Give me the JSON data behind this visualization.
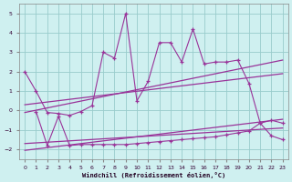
{
  "xlabel": "Windchill (Refroidissement éolien,°C)",
  "xlim": [
    -0.5,
    23.5
  ],
  "ylim": [
    -2.5,
    5.5
  ],
  "yticks": [
    -2,
    -1,
    0,
    1,
    2,
    3,
    4,
    5
  ],
  "xticks": [
    0,
    1,
    2,
    3,
    4,
    5,
    6,
    7,
    8,
    9,
    10,
    11,
    12,
    13,
    14,
    15,
    16,
    17,
    18,
    19,
    20,
    21,
    22,
    23
  ],
  "bg_color": "#cff0f0",
  "line_color": "#993399",
  "grid_color": "#99cccc",
  "line1_x": [
    0,
    1,
    2,
    3,
    4,
    5,
    6,
    7,
    8,
    9,
    10,
    11,
    12,
    13,
    14,
    15,
    16,
    17,
    18,
    19,
    20,
    21,
    22,
    23
  ],
  "line1_y": [
    2.0,
    1.0,
    -0.1,
    -0.15,
    -0.25,
    -0.05,
    0.25,
    3.0,
    2.7,
    5.0,
    0.5,
    1.5,
    3.5,
    3.5,
    2.5,
    4.2,
    2.4,
    2.5,
    2.5,
    2.6,
    1.4,
    -0.65,
    -0.5,
    -0.65
  ],
  "line2_x": [
    1,
    2,
    3,
    4,
    5,
    6,
    7,
    8,
    9,
    10,
    11,
    12,
    13,
    14,
    15,
    16,
    17,
    18,
    19,
    20,
    21,
    22,
    23
  ],
  "line2_y": [
    -0.05,
    -1.8,
    -0.3,
    -1.8,
    -1.75,
    -1.75,
    -1.75,
    -1.75,
    -1.75,
    -1.7,
    -1.65,
    -1.6,
    -1.55,
    -1.5,
    -1.45,
    -1.4,
    -1.35,
    -1.25,
    -1.15,
    -1.05,
    -0.65,
    -1.3,
    -1.5
  ],
  "line3_x": [
    0,
    23
  ],
  "line3_y": [
    -0.1,
    2.6
  ],
  "line4_x": [
    0,
    23
  ],
  "line4_y": [
    -2.05,
    -0.45
  ],
  "line5_x": [
    0,
    23
  ],
  "line5_y": [
    0.3,
    1.9
  ],
  "line6_x": [
    0,
    23
  ],
  "line6_y": [
    -1.7,
    -0.9
  ]
}
